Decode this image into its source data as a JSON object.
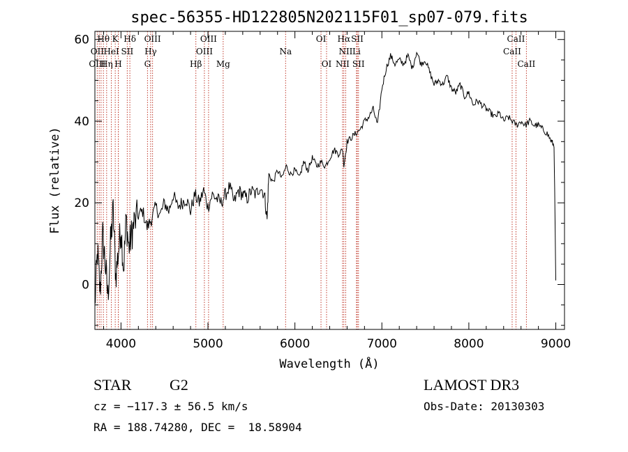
{
  "chart_data": {
    "type": "line",
    "title": "spec-56355-HD122805N202115F01_sp07-079.fits",
    "xlabel": "Wavelength (Å)",
    "ylabel": "Flux (relative)",
    "xlim": [
      3700,
      9100
    ],
    "ylim": [
      -11,
      62
    ],
    "xticks": [
      4000,
      5000,
      6000,
      7000,
      8000,
      9000
    ],
    "yticks": [
      0,
      20,
      40,
      60
    ],
    "series": [
      {
        "name": "spectrum",
        "x": [
          3700,
          3730,
          3760,
          3790,
          3820,
          3850,
          3880,
          3910,
          3940,
          3970,
          4000,
          4030,
          4060,
          4090,
          4120,
          4150,
          4200,
          4250,
          4300,
          4350,
          4400,
          4450,
          4500,
          4550,
          4600,
          4650,
          4700,
          4750,
          4800,
          4850,
          4900,
          4950,
          5000,
          5050,
          5100,
          5150,
          5200,
          5250,
          5300,
          5350,
          5400,
          5450,
          5500,
          5550,
          5600,
          5650,
          5680,
          5700,
          5750,
          5800,
          5850,
          5900,
          5950,
          6000,
          6050,
          6100,
          6150,
          6200,
          6250,
          6300,
          6350,
          6400,
          6450,
          6500,
          6550,
          6563,
          6600,
          6650,
          6700,
          6750,
          6800,
          6850,
          6900,
          6950,
          7000,
          7050,
          7100,
          7150,
          7200,
          7250,
          7300,
          7350,
          7400,
          7450,
          7500,
          7550,
          7600,
          7650,
          7700,
          7750,
          7800,
          7850,
          7900,
          7950,
          8000,
          8050,
          8100,
          8150,
          8200,
          8250,
          8300,
          8350,
          8400,
          8450,
          8500,
          8550,
          8600,
          8650,
          8700,
          8750,
          8800,
          8850,
          8900,
          8950,
          8980,
          9000
        ],
        "y": [
          -5,
          8,
          -2,
          12,
          5,
          -3,
          10,
          18,
          2,
          8,
          14,
          4,
          16,
          9,
          12,
          15,
          17,
          18,
          14,
          16,
          19,
          17,
          20,
          18,
          22,
          19,
          20,
          21,
          18,
          22,
          20,
          23,
          19,
          22,
          21,
          20,
          22,
          24,
          20,
          23,
          22,
          21,
          23,
          22,
          24,
          22,
          16,
          27,
          25,
          28,
          26,
          29,
          27,
          28,
          26,
          30,
          28,
          31,
          29,
          30,
          29,
          31,
          33,
          32,
          33,
          29,
          35,
          36,
          37,
          38,
          40,
          41,
          43,
          39,
          48,
          53,
          56,
          54,
          55,
          54,
          56,
          53,
          57,
          54,
          55,
          52,
          49,
          50,
          49,
          51,
          48,
          47,
          49,
          46,
          47,
          44,
          45,
          44,
          43,
          42,
          41,
          42,
          40,
          41,
          40,
          39,
          40,
          39,
          40,
          39,
          39,
          38,
          37,
          35,
          34,
          1
        ]
      }
    ],
    "spectral_lines": [
      {
        "label": "Hθ",
        "wavelength": 3798,
        "row": 0
      },
      {
        "label": "K",
        "wavelength": 3934,
        "row": 0
      },
      {
        "label": "Hδ",
        "wavelength": 4102,
        "row": 0
      },
      {
        "label": "OIII",
        "wavelength": 4363,
        "row": 0
      },
      {
        "label": "OIII",
        "wavelength": 5007,
        "row": 0
      },
      {
        "label": "OI",
        "wavelength": 6300,
        "row": 0
      },
      {
        "label": "Hα",
        "wavelength": 6563,
        "row": 0
      },
      {
        "label": "SII",
        "wavelength": 6717,
        "row": 0
      },
      {
        "label": "CaII",
        "wavelength": 8542,
        "row": 0
      },
      {
        "label": "OII",
        "wavelength": 3727,
        "row": 1
      },
      {
        "label": "HeI",
        "wavelength": 3889,
        "row": 1
      },
      {
        "label": "SII",
        "wavelength": 4072,
        "row": 1
      },
      {
        "label": "Hγ",
        "wavelength": 4341,
        "row": 1
      },
      {
        "label": "OIII",
        "wavelength": 4959,
        "row": 1
      },
      {
        "label": "Na",
        "wavelength": 5893,
        "row": 1
      },
      {
        "label": "NII",
        "wavelength": 6584,
        "row": 1
      },
      {
        "label": "Li",
        "wavelength": 6708,
        "row": 1
      },
      {
        "label": "CaII",
        "wavelength": 8498,
        "row": 1
      },
      {
        "label": "OIII",
        "wavelength": 3727,
        "row": 2
      },
      {
        "label": "Hη",
        "wavelength": 3835,
        "row": 2
      },
      {
        "label": "H",
        "wavelength": 3969,
        "row": 2
      },
      {
        "label": "G",
        "wavelength": 4305,
        "row": 2
      },
      {
        "label": "Hβ",
        "wavelength": 4861,
        "row": 2
      },
      {
        "label": "Mg",
        "wavelength": 5175,
        "row": 2
      },
      {
        "label": "OI",
        "wavelength": 6364,
        "row": 2
      },
      {
        "label": "NII",
        "wavelength": 6548,
        "row": 2
      },
      {
        "label": "SII",
        "wavelength": 6731,
        "row": 2
      },
      {
        "label": "CaII",
        "wavelength": 8662,
        "row": 2
      }
    ],
    "extra_lines": [
      3750,
      3771,
      3889,
      3970,
      4072,
      4102,
      4341,
      4861,
      4959,
      5007,
      5175,
      5893,
      6300,
      6364,
      6548,
      6584,
      6717,
      6731,
      8498,
      8542,
      8662
    ]
  },
  "info": {
    "object_type": "STAR",
    "subclass": "G2",
    "cz": "cz = −117.3 ± 56.5 km/s",
    "radec": "RA = 188.74280, DEC =  18.58904",
    "survey": "LAMOST DR3",
    "obs_date": "Obs-Date: 20130303"
  }
}
